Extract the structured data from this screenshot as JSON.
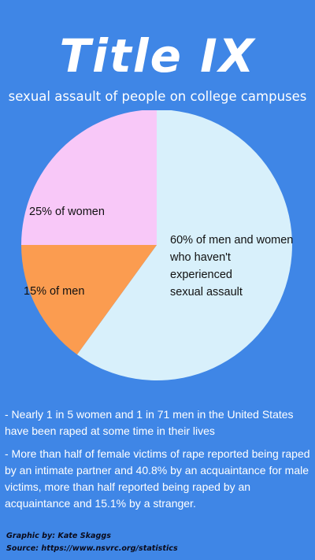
{
  "header": {
    "title": "Title IX",
    "subtitle": "sexual assault of people on college campuses"
  },
  "chart_data": {
    "type": "pie",
    "slices": [
      {
        "label": "60% of men and women who haven't experienced sexual assault",
        "label_lines": [
          "60% of men and women",
          "who haven't",
          "experienced",
          "sexual assault"
        ],
        "value": 60,
        "color": "#d8f0fb"
      },
      {
        "label": "15% of men",
        "label_lines": [
          "15% of men"
        ],
        "value": 15,
        "color": "#fb9c50"
      },
      {
        "label": "25% of women",
        "label_lines": [
          "25% of women"
        ],
        "value": 25,
        "color": "#f8c8f8"
      }
    ]
  },
  "notes": [
    "- Nearly 1 in 5 women and 1 in 71 men in the United States have been raped at some time in their lives",
    "- More than half of female victims of rape reported being raped by an intimate partner and 40.8% by an acquaintance for male victims, more than half reported being raped by an acquaintance and 15.1% by a stranger."
  ],
  "credit": {
    "graphic_by": "Graphic by: Kate Skaggs",
    "source": "Source: https://www.nsvrc.org/statistics"
  }
}
